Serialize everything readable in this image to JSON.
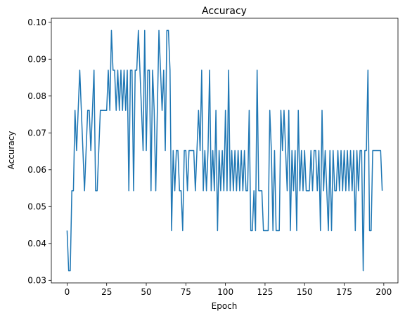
{
  "chart_data": {
    "type": "line",
    "title": "Accuracy",
    "xlabel": "Epoch",
    "ylabel": "Accuracy",
    "x": [
      0,
      1,
      2,
      3,
      4,
      5,
      6,
      7,
      8,
      9,
      10,
      11,
      12,
      13,
      14,
      15,
      16,
      17,
      18,
      19,
      20,
      21,
      22,
      23,
      24,
      25,
      26,
      27,
      28,
      29,
      30,
      31,
      32,
      33,
      34,
      35,
      36,
      37,
      38,
      39,
      40,
      41,
      42,
      43,
      44,
      45,
      46,
      47,
      48,
      49,
      50,
      51,
      52,
      53,
      54,
      55,
      56,
      57,
      58,
      59,
      60,
      61,
      62,
      63,
      64,
      65,
      66,
      67,
      68,
      69,
      70,
      71,
      72,
      73,
      74,
      75,
      76,
      77,
      78,
      79,
      80,
      81,
      82,
      83,
      84,
      85,
      86,
      87,
      88,
      89,
      90,
      91,
      92,
      93,
      94,
      95,
      96,
      97,
      98,
      99,
      100,
      101,
      102,
      103,
      104,
      105,
      106,
      107,
      108,
      109,
      110,
      111,
      112,
      113,
      114,
      115,
      116,
      117,
      118,
      119,
      120,
      121,
      122,
      123,
      124,
      125,
      126,
      127,
      128,
      129,
      130,
      131,
      132,
      133,
      134,
      135,
      136,
      137,
      138,
      139,
      140,
      141,
      142,
      143,
      144,
      145,
      146,
      147,
      148,
      149,
      150,
      151,
      152,
      153,
      154,
      155,
      156,
      157,
      158,
      159,
      160,
      161,
      162,
      163,
      164,
      165,
      166,
      167,
      168,
      169,
      170,
      171,
      172,
      173,
      174,
      175,
      176,
      177,
      178,
      179,
      180,
      181,
      182,
      183,
      184,
      185,
      186,
      187,
      188,
      189,
      190,
      191,
      192,
      193,
      194,
      195,
      196,
      197,
      198,
      199
    ],
    "series": [
      {
        "color": "#1f77b4",
        "values": [
          0.0435,
          0.0326,
          0.0326,
          0.0543,
          0.0543,
          0.0761,
          0.0652,
          0.0761,
          0.087,
          0.0761,
          0.0652,
          0.0543,
          0.0652,
          0.0761,
          0.0761,
          0.0652,
          0.0761,
          0.087,
          0.0543,
          0.0543,
          0.0652,
          0.0761,
          0.0761,
          0.0761,
          0.0761,
          0.0761,
          0.087,
          0.0761,
          0.0978,
          0.087,
          0.087,
          0.0761,
          0.087,
          0.0761,
          0.087,
          0.0761,
          0.087,
          0.0761,
          0.087,
          0.0543,
          0.087,
          0.087,
          0.0543,
          0.087,
          0.087,
          0.0978,
          0.087,
          0.0761,
          0.0652,
          0.0978,
          0.0652,
          0.087,
          0.087,
          0.0543,
          0.087,
          0.0761,
          0.0543,
          0.0761,
          0.0978,
          0.087,
          0.0761,
          0.087,
          0.0652,
          0.0978,
          0.0978,
          0.087,
          0.0435,
          0.0652,
          0.0543,
          0.0652,
          0.0652,
          0.0543,
          0.0543,
          0.0435,
          0.0652,
          0.0652,
          0.0543,
          0.0652,
          0.0652,
          0.0652,
          0.0652,
          0.0543,
          0.0652,
          0.0761,
          0.0652,
          0.087,
          0.0543,
          0.0652,
          0.0543,
          0.0652,
          0.087,
          0.0543,
          0.0652,
          0.0543,
          0.0761,
          0.0435,
          0.0652,
          0.0543,
          0.0652,
          0.0543,
          0.0761,
          0.0543,
          0.087,
          0.0543,
          0.0652,
          0.0543,
          0.0652,
          0.0543,
          0.0652,
          0.0543,
          0.0652,
          0.0543,
          0.0652,
          0.0543,
          0.0543,
          0.0761,
          0.0435,
          0.0435,
          0.0543,
          0.0435,
          0.087,
          0.0543,
          0.0543,
          0.0543,
          0.0435,
          0.0435,
          0.0435,
          0.0435,
          0.0761,
          0.0652,
          0.0435,
          0.0652,
          0.0435,
          0.0435,
          0.0435,
          0.0761,
          0.0652,
          0.0761,
          0.0652,
          0.0543,
          0.0761,
          0.0435,
          0.0652,
          0.0543,
          0.0652,
          0.0435,
          0.0761,
          0.0543,
          0.0652,
          0.0543,
          0.0652,
          0.0543,
          0.0543,
          0.0543,
          0.0652,
          0.0543,
          0.0652,
          0.0652,
          0.0543,
          0.0652,
          0.0435,
          0.0761,
          0.0543,
          0.0652,
          0.0543,
          0.0435,
          0.0652,
          0.0435,
          0.0652,
          0.0543,
          0.0543,
          0.0652,
          0.0543,
          0.0652,
          0.0543,
          0.0652,
          0.0543,
          0.0652,
          0.0543,
          0.0652,
          0.0543,
          0.0652,
          0.0435,
          0.0652,
          0.0543,
          0.0652,
          0.0652,
          0.0326,
          0.0652,
          0.0652,
          0.087,
          0.0435,
          0.0435,
          0.0652,
          0.0652,
          0.0652,
          0.0652,
          0.0652,
          0.0652,
          0.0543
        ]
      }
    ],
    "xlim": [
      -9.95,
      208.95
    ],
    "ylim": [
      0.0293,
      0.1011
    ],
    "xticks": [
      0,
      25,
      50,
      75,
      100,
      125,
      150,
      175,
      200
    ],
    "yticks": [
      0.03,
      0.04,
      0.05,
      0.06,
      0.07,
      0.08,
      0.09,
      {
        "value": 0.1,
        "label": "0.10"
      }
    ]
  }
}
